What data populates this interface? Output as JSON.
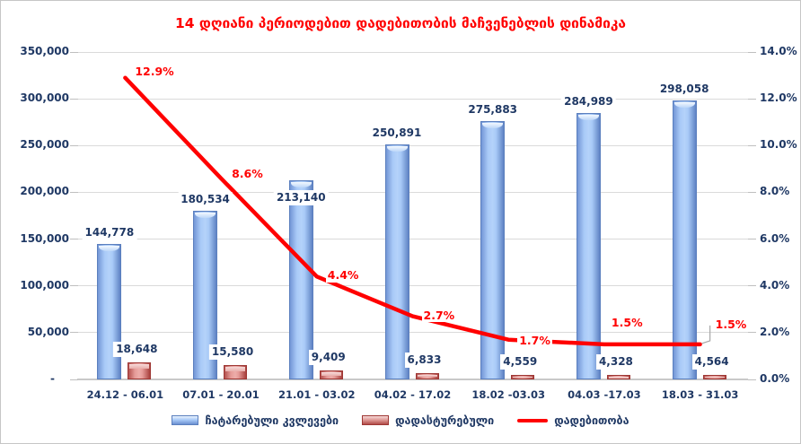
{
  "title": {
    "text": "14 დღიანი პერიოდებით დადებითობის მაჩვენებლის დინამიკა",
    "color": "#ff0000"
  },
  "chart_data": {
    "type": "combo-bar-line",
    "categories": [
      "24.12 - 06.01",
      "07.01 - 20.01",
      "21.01 - 03.02",
      "04.02 - 17.02",
      "18.02 -03.03",
      "04.03 -17.03",
      "18.03 - 31.03"
    ],
    "series": [
      {
        "name": "ჩატარებული კვლევები",
        "type": "bar",
        "axis": "left",
        "color": "#a9caf7",
        "values": [
          144778,
          180534,
          213140,
          250891,
          275883,
          284989,
          298058
        ],
        "labels": [
          "144,778",
          "180,534",
          "213,140",
          "250,891",
          "275,883",
          "284,989",
          "298,058"
        ]
      },
      {
        "name": "დადასტურებული",
        "type": "bar",
        "axis": "left",
        "color": "#e09b98",
        "values": [
          18648,
          15580,
          9409,
          6833,
          4559,
          4328,
          4564
        ],
        "labels": [
          "18,648",
          "15,580",
          "9,409",
          "6,833",
          "4,559",
          "4,328",
          "4,564"
        ]
      },
      {
        "name": "დადებითობა",
        "type": "line",
        "axis": "right",
        "color": "#ff0000",
        "values": [
          12.9,
          8.6,
          4.4,
          2.7,
          1.7,
          1.5,
          1.5
        ],
        "labels": [
          "12.9%",
          "8.6%",
          "4.4%",
          "2.7%",
          "1.7%",
          "1.5%",
          "1.5%"
        ]
      }
    ],
    "left_axis": {
      "min": 0,
      "max": 350000,
      "step": 50000,
      "tick_labels": [
        "350,000",
        "300,000",
        "250,000",
        "200,000",
        "150,000",
        "100,000",
        "50,000",
        "-"
      ]
    },
    "right_axis": {
      "min": 0,
      "max": 14,
      "step": 2,
      "tick_labels": [
        "14.0%",
        "12.0%",
        "10.0%",
        "8.0%",
        "6.0%",
        "4.0%",
        "2.0%",
        "0.0%"
      ]
    },
    "legend": {
      "position": "bottom"
    },
    "grid": true
  },
  "colors": {
    "text_navy": "#1f3864",
    "gridline": "#dadada",
    "background": "#ffffff",
    "line_red": "#ff0000"
  }
}
